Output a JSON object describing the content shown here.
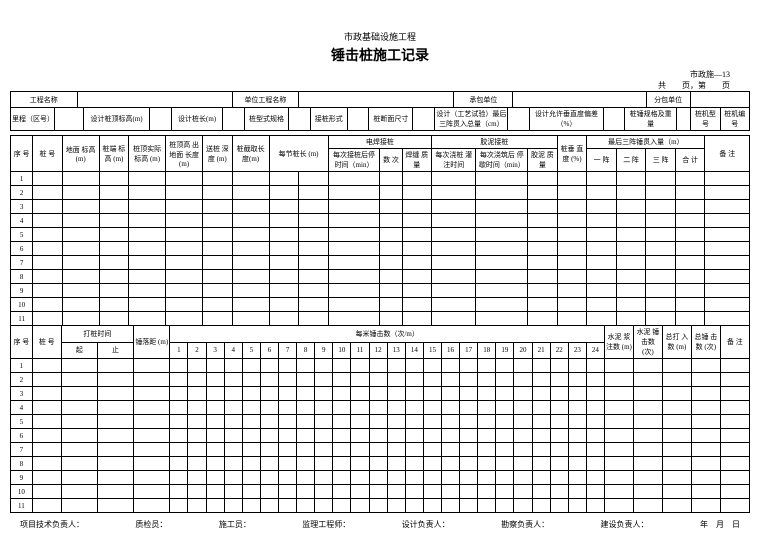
{
  "header": {
    "subtitle": "市政基础设施工程",
    "title": "锤击桩施工记录",
    "code": "市政施—13",
    "pageinfo": "共　　页，第　　页"
  },
  "info": {
    "l1": "工程名称",
    "l2": "单位工程名称",
    "l3": "承包单位",
    "l4": "分包单位",
    "r1": "里程（区号）",
    "r2": "设计桩顶标高(m)",
    "r3": "设计桩长(m)",
    "r4": "桩型式规格",
    "r5": "接桩形式",
    "r6": "桩断面尺寸",
    "r7": "设计（工艺试验）最后\n三阵贯入总量（cm）",
    "r8": "设计允许垂直度偏差（%）",
    "r9": "桩锤规格及重量",
    "r10": "桩机型号",
    "r11": "桩机编号"
  },
  "t1": {
    "c1": "序 号",
    "c2": "桩 号",
    "c3": "地面\n标高(m)",
    "c4": "桩端\n标高\n(m)",
    "c5": "桩顶实际\n标高\n(m)",
    "c6": "桩顶高\n出地面\n长度\n(m)",
    "c7": "送桩\n深度\n(m)",
    "c8": "桩截取长\n度(m)",
    "c9": "每节桩长\n(m)",
    "weld": "电焊接桩",
    "glue": "胶泥接桩",
    "w1": "每次接桩后停\n时间（min）",
    "w2": "数\n次",
    "w3": "焊缝\n质量",
    "g1": "每次浇桩\n灌注时间",
    "g2": "每次浇筑后\n停歇时间（min）",
    "g3": "胶泥\n质量",
    "tilt": "桩垂 直\n度\n(%)",
    "last3": "最后三阵锤贯入量（m）",
    "l1": "一 阵",
    "l2": "二 阵",
    "l3": "三 阵",
    "l4": "合 计",
    "remark": "备 注"
  },
  "t2": {
    "c1": "序 号",
    "c2": "桩 号",
    "time": "打桩时间",
    "start": "起",
    "end": "止",
    "drop": "锤落距\n(m)",
    "permeter": "每米锤击数（次/m）",
    "p1": "水泥\n浆注数\n(m)",
    "p2": "水泥\n锤击数\n(次)",
    "p3": "总打\n入数\n(m)",
    "p4": "总锤\n击数\n(次)",
    "remark": "备\n注"
  },
  "nums": [
    "1",
    "2",
    "3",
    "4",
    "5",
    "6",
    "7",
    "8",
    "9",
    "10",
    "11",
    "12",
    "13",
    "14",
    "15",
    "16",
    "17",
    "18",
    "19",
    "20",
    "21",
    "22",
    "23",
    "24"
  ],
  "rows": [
    "1",
    "2",
    "3",
    "4",
    "5",
    "6",
    "7",
    "8",
    "9",
    "10",
    "11"
  ],
  "footer": {
    "f1": "项目技术负责人：",
    "f2": "质检员：",
    "f3": "施工员：",
    "f4": "监理工程师：",
    "f5": "设计负责人：",
    "f6": "勘察负责人：",
    "f7": "建设负责人：",
    "f8": "年　月　日"
  }
}
